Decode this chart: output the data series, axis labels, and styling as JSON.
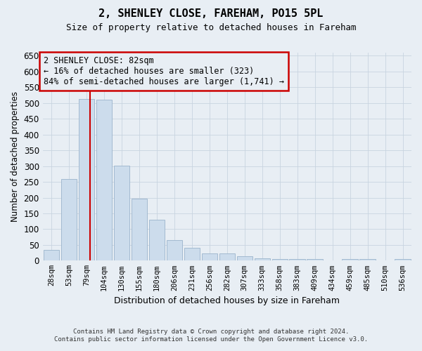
{
  "title": "2, SHENLEY CLOSE, FAREHAM, PO15 5PL",
  "subtitle": "Size of property relative to detached houses in Fareham",
  "xlabel": "Distribution of detached houses by size in Fareham",
  "ylabel": "Number of detached properties",
  "footer1": "Contains HM Land Registry data © Crown copyright and database right 2024.",
  "footer2": "Contains public sector information licensed under the Open Government Licence v3.0.",
  "categories": [
    "28sqm",
    "53sqm",
    "79sqm",
    "104sqm",
    "130sqm",
    "155sqm",
    "180sqm",
    "206sqm",
    "231sqm",
    "256sqm",
    "282sqm",
    "307sqm",
    "333sqm",
    "358sqm",
    "383sqm",
    "409sqm",
    "434sqm",
    "459sqm",
    "485sqm",
    "510sqm",
    "536sqm"
  ],
  "values": [
    33,
    260,
    513,
    510,
    302,
    197,
    130,
    65,
    40,
    22,
    22,
    13,
    8,
    5,
    5,
    5,
    0,
    5,
    5,
    1,
    5
  ],
  "bar_color": "#ccdcec",
  "bar_edge_color": "#9ab4cc",
  "grid_color": "#c8d4e0",
  "background_color": "#e8eef4",
  "vline_x": 2.18,
  "vline_color": "#cc0000",
  "annotation_text": "2 SHENLEY CLOSE: 82sqm\n← 16% of detached houses are smaller (323)\n84% of semi-detached houses are larger (1,741) →",
  "annotation_box_color": "#cc0000",
  "ylim": [
    0,
    660
  ],
  "yticks": [
    0,
    50,
    100,
    150,
    200,
    250,
    300,
    350,
    400,
    450,
    500,
    550,
    600,
    650
  ]
}
